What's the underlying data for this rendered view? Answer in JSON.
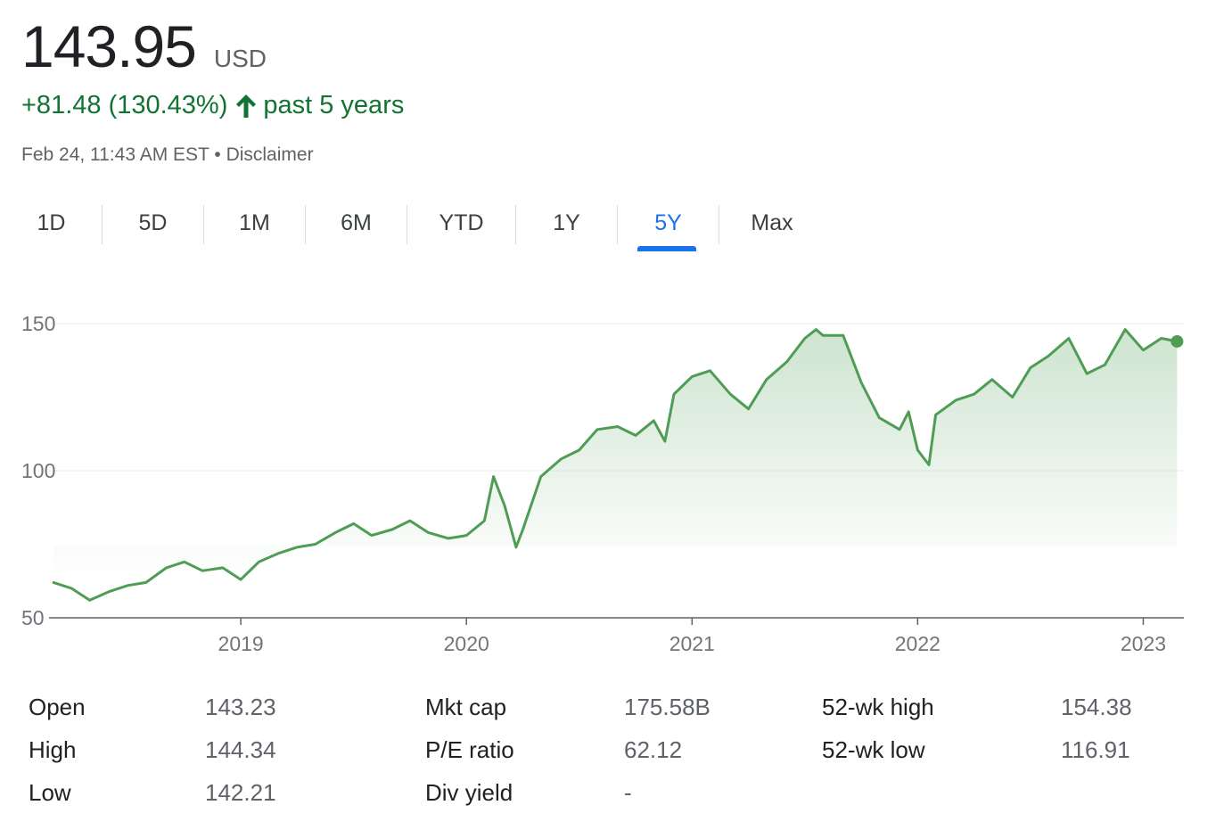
{
  "quote": {
    "price": "143.95",
    "currency": "USD",
    "change": "+81.48 (130.43%)",
    "period": "past 5 years",
    "timestamp": "Feb 24, 11:43 AM EST",
    "separator": "•",
    "disclaimer": "Disclaimer"
  },
  "tabs": [
    {
      "label": "1D",
      "active": false
    },
    {
      "label": "5D",
      "active": false
    },
    {
      "label": "1M",
      "active": false
    },
    {
      "label": "6M",
      "active": false
    },
    {
      "label": "YTD",
      "active": false
    },
    {
      "label": "1Y",
      "active": false
    },
    {
      "label": "5Y",
      "active": true
    },
    {
      "label": "Max",
      "active": false
    }
  ],
  "colors": {
    "positive": "#137333",
    "line": "#4f9d55",
    "accent": "#1a73e8"
  },
  "chart_data": {
    "type": "area",
    "ylim": [
      50,
      160
    ],
    "xlim": [
      2018.15,
      2023.18
    ],
    "yticks": [
      50,
      100,
      150
    ],
    "xticks": [
      "2019",
      "2020",
      "2021",
      "2022",
      "2023"
    ],
    "x": [
      2018.17,
      2018.25,
      2018.33,
      2018.42,
      2018.5,
      2018.58,
      2018.67,
      2018.75,
      2018.83,
      2018.92,
      2019.0,
      2019.08,
      2019.17,
      2019.25,
      2019.33,
      2019.42,
      2019.5,
      2019.58,
      2019.67,
      2019.75,
      2019.83,
      2019.92,
      2020.0,
      2020.08,
      2020.12,
      2020.17,
      2020.22,
      2020.25,
      2020.33,
      2020.42,
      2020.5,
      2020.58,
      2020.67,
      2020.75,
      2020.83,
      2020.88,
      2020.92,
      2021.0,
      2021.08,
      2021.17,
      2021.25,
      2021.33,
      2021.42,
      2021.5,
      2021.55,
      2021.58,
      2021.67,
      2021.75,
      2021.83,
      2021.92,
      2021.96,
      2022.0,
      2022.05,
      2022.08,
      2022.17,
      2022.25,
      2022.33,
      2022.42,
      2022.5,
      2022.58,
      2022.67,
      2022.75,
      2022.83,
      2022.92,
      2023.0,
      2023.08,
      2023.15
    ],
    "y": [
      62,
      60,
      56,
      59,
      61,
      62,
      67,
      69,
      66,
      67,
      63,
      69,
      72,
      74,
      75,
      79,
      82,
      78,
      80,
      83,
      79,
      77,
      78,
      83,
      98,
      88,
      74,
      80,
      98,
      104,
      107,
      114,
      115,
      112,
      117,
      110,
      126,
      132,
      134,
      126,
      121,
      131,
      137,
      145,
      148,
      146,
      146,
      130,
      118,
      114,
      120,
      107,
      102,
      119,
      124,
      126,
      131,
      125,
      135,
      139,
      145,
      133,
      136,
      148,
      141,
      145,
      143.95
    ]
  },
  "stats": [
    {
      "label": "Open",
      "value": "143.23"
    },
    {
      "label": "High",
      "value": "144.34"
    },
    {
      "label": "Low",
      "value": "142.21"
    },
    {
      "label": "Mkt cap",
      "value": "175.58B"
    },
    {
      "label": "P/E ratio",
      "value": "62.12"
    },
    {
      "label": "Div yield",
      "value": "-"
    },
    {
      "label": "52-wk high",
      "value": "154.38"
    },
    {
      "label": "52-wk low",
      "value": "116.91"
    }
  ]
}
